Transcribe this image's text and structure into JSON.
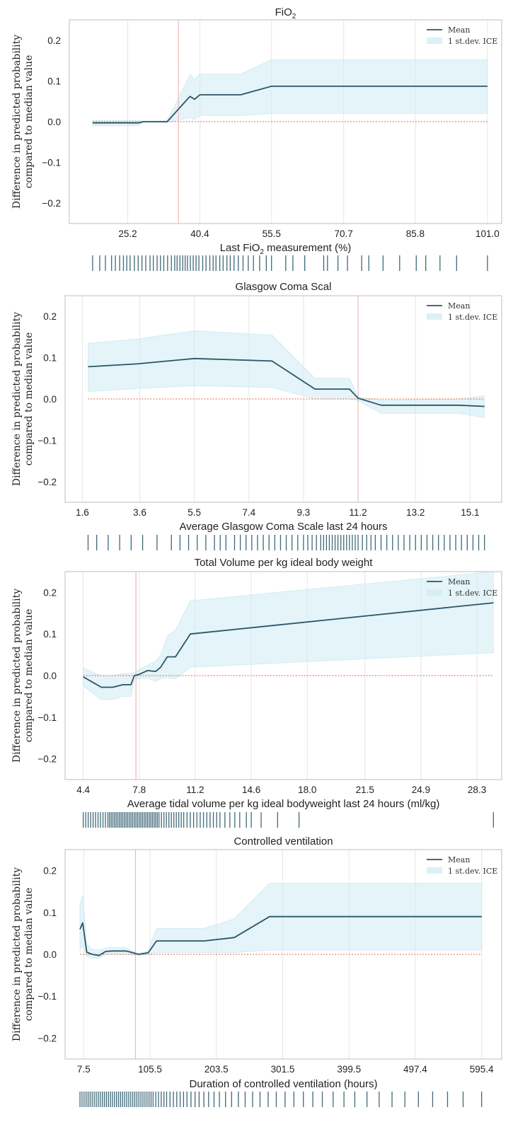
{
  "colors": {
    "mean_line": "#2b5566",
    "band_fill": "#cdebf3",
    "zero_line": "#e8633f",
    "ref_line": "#f2b8b8",
    "grid": "#e6e6e6",
    "frame": "#bdbdbd",
    "rug": "#1f4f5f"
  },
  "shared": {
    "ylabel_line1": "Difference in predicted probability",
    "ylabel_line2": "compared to median value",
    "legend_mean": "Mean",
    "legend_band": "1 st.dev. ICE"
  },
  "chart_data": [
    {
      "type": "line",
      "title": "FiO",
      "title_sub": "2",
      "xlabel_pre": "Last FiO",
      "xlabel_sub": "2",
      "xlabel_post": " measurement (%)",
      "xlim": [
        12.9,
        104.0
      ],
      "ylim": [
        -0.25,
        0.25
      ],
      "xticks": [
        25.2,
        40.4,
        55.5,
        70.7,
        85.8,
        101.0
      ],
      "xtick_labels": [
        "25.2",
        "40.4",
        "55.5",
        "70.7",
        "85.8",
        "101.0"
      ],
      "yticks": [
        0.2,
        0.1,
        0.0,
        -0.1,
        -0.2
      ],
      "ytick_labels": [
        "0.2",
        "0.1",
        "0.0",
        "−0.1",
        "−0.2"
      ],
      "reference_x": 35.9,
      "mean": {
        "x": [
          17.8,
          27.5,
          28.5,
          33.5,
          38.3,
          39.3,
          40.4,
          49.0,
          55.5,
          101.0
        ],
        "y": [
          -0.003,
          -0.003,
          0.0,
          0.0,
          0.062,
          0.055,
          0.066,
          0.066,
          0.087,
          0.087
        ]
      },
      "band": {
        "x": [
          17.8,
          27.5,
          28.5,
          33.5,
          38.3,
          39.3,
          40.4,
          49.0,
          55.5,
          101.0
        ],
        "upper": [
          0.003,
          0.003,
          0.001,
          0.002,
          0.115,
          0.105,
          0.117,
          0.117,
          0.152,
          0.152
        ],
        "lower": [
          -0.01,
          -0.01,
          -0.001,
          -0.002,
          0.01,
          0.005,
          0.015,
          0.015,
          0.02,
          0.02
        ]
      },
      "rug": [
        17.8,
        19.3,
        20.5,
        21.8,
        22.6,
        23.5,
        24.3,
        25.0,
        25.7,
        26.6,
        27.4,
        28.2,
        29.0,
        29.9,
        30.6,
        31.4,
        32.1,
        32.8,
        33.6,
        34.4,
        35.1,
        35.6,
        36.2,
        36.8,
        37.3,
        37.8,
        38.4,
        39.0,
        39.6,
        40.2,
        41.0,
        41.7,
        42.5,
        43.2,
        43.8,
        44.6,
        45.3,
        46.1,
        46.8,
        47.6,
        48.5,
        49.5,
        50.6,
        51.7,
        53.0,
        54.4,
        55.5,
        58.5,
        60.0,
        62.5,
        66.5,
        67.3,
        69.5,
        71.5,
        74.5,
        76.0,
        79.0,
        82.5,
        86.0,
        88.0,
        91.0,
        94.5,
        101.0
      ]
    },
    {
      "type": "line",
      "title": "Glasgow Coma Scal",
      "xlabel": "Average Glasgow Coma Scale last 24 hours",
      "xlim": [
        1.0,
        16.2
      ],
      "ylim": [
        -0.25,
        0.25
      ],
      "xticks": [
        1.6,
        3.6,
        5.5,
        7.4,
        9.3,
        11.2,
        13.2,
        15.1
      ],
      "xtick_labels": [
        "1.6",
        "3.6",
        "5.5",
        "7.4",
        "9.3",
        "11.2",
        "13.2",
        "15.1"
      ],
      "yticks": [
        0.2,
        0.1,
        0.0,
        -0.1,
        -0.2
      ],
      "ytick_labels": [
        "0.2",
        "0.1",
        "0.0",
        "−0.1",
        "−0.2"
      ],
      "reference_x": 11.2,
      "mean": {
        "x": [
          1.8,
          3.5,
          5.5,
          8.2,
          9.7,
          10.9,
          11.2,
          12.0,
          14.7,
          15.6
        ],
        "y": [
          0.078,
          0.085,
          0.098,
          0.092,
          0.024,
          0.024,
          0.002,
          -0.015,
          -0.015,
          -0.018
        ]
      },
      "band": {
        "x": [
          1.8,
          3.5,
          5.5,
          8.2,
          9.7,
          10.9,
          11.2,
          12.0,
          14.7,
          15.6
        ],
        "upper": [
          0.135,
          0.145,
          0.165,
          0.155,
          0.05,
          0.05,
          0.005,
          -0.003,
          0.0,
          0.008
        ],
        "lower": [
          0.018,
          0.025,
          0.032,
          0.028,
          0.0,
          0.0,
          -0.004,
          -0.035,
          -0.035,
          -0.045
        ]
      },
      "rug": [
        1.8,
        2.1,
        2.5,
        2.9,
        3.3,
        3.7,
        4.2,
        4.7,
        5.0,
        5.3,
        5.6,
        5.9,
        6.2,
        6.4,
        6.6,
        6.9,
        7.1,
        7.3,
        7.5,
        7.7,
        7.9,
        8.1,
        8.3,
        8.5,
        8.7,
        8.9,
        9.1,
        9.3,
        9.45,
        9.6,
        9.75,
        9.9,
        10.0,
        10.1,
        10.2,
        10.3,
        10.4,
        10.5,
        10.6,
        10.7,
        10.8,
        10.9,
        11.0,
        11.1,
        11.2,
        11.35,
        11.5,
        11.65,
        11.8,
        12.0,
        12.2,
        12.4,
        12.6,
        12.8,
        13.0,
        13.2,
        13.4,
        13.6,
        13.8,
        14.0,
        14.2,
        14.4,
        14.6,
        14.8,
        15.0,
        15.2,
        15.4,
        15.6
      ]
    },
    {
      "type": "line",
      "title": "Total Volume per kg ideal body weight",
      "xlabel": "Average tidal volume per kg ideal bodyweight last 24 hours (ml/kg)",
      "xlim": [
        3.3,
        29.8
      ],
      "ylim": [
        -0.25,
        0.25
      ],
      "xticks": [
        4.4,
        7.8,
        11.2,
        14.6,
        18.0,
        21.5,
        24.9,
        28.3
      ],
      "xtick_labels": [
        "4.4",
        "7.8",
        "11.2",
        "14.6",
        "18.0",
        "21.5",
        "24.9",
        "28.3"
      ],
      "yticks": [
        0.2,
        0.1,
        0.0,
        -0.1,
        -0.2
      ],
      "ytick_labels": [
        "0.2",
        "0.1",
        "0.0",
        "−0.1",
        "−0.2"
      ],
      "reference_x": 7.6,
      "mean": {
        "x": [
          4.4,
          5.5,
          6.2,
          6.8,
          7.3,
          7.5,
          7.8,
          8.3,
          8.8,
          9.1,
          9.5,
          10.0,
          10.9,
          29.3
        ],
        "y": [
          -0.003,
          -0.028,
          -0.028,
          -0.022,
          -0.022,
          0.0,
          0.003,
          0.012,
          0.01,
          0.02,
          0.045,
          0.045,
          0.1,
          0.175
        ]
      },
      "band": {
        "x": [
          4.4,
          5.5,
          6.2,
          6.8,
          7.3,
          7.5,
          7.8,
          8.3,
          8.8,
          9.1,
          9.5,
          10.0,
          10.9,
          29.3
        ],
        "upper": [
          0.018,
          0.0,
          0.0,
          0.005,
          0.005,
          0.008,
          0.015,
          0.025,
          0.035,
          0.05,
          0.095,
          0.11,
          0.18,
          0.25
        ],
        "lower": [
          -0.025,
          -0.058,
          -0.058,
          -0.05,
          -0.05,
          -0.008,
          -0.008,
          -0.005,
          -0.015,
          -0.008,
          -0.005,
          -0.008,
          0.02,
          0.055
        ]
      },
      "rug": [
        4.4,
        4.55,
        4.7,
        4.85,
        5.0,
        5.15,
        5.3,
        5.45,
        5.6,
        5.75,
        5.9,
        6.0,
        6.1,
        6.2,
        6.3,
        6.4,
        6.5,
        6.6,
        6.7,
        6.8,
        6.9,
        7.0,
        7.1,
        7.2,
        7.3,
        7.4,
        7.5,
        7.6,
        7.7,
        7.8,
        7.9,
        8.0,
        8.1,
        8.2,
        8.3,
        8.4,
        8.5,
        8.6,
        8.7,
        8.8,
        8.9,
        9.0,
        9.15,
        9.3,
        9.45,
        9.6,
        9.75,
        9.9,
        10.05,
        10.2,
        10.35,
        10.5,
        10.7,
        10.9,
        11.1,
        11.3,
        11.5,
        11.7,
        11.9,
        12.1,
        12.3,
        12.5,
        12.7,
        13.0,
        13.3,
        13.6,
        13.9,
        14.3,
        14.6,
        15.2,
        16.2,
        17.5,
        29.3
      ]
    },
    {
      "type": "line",
      "title": "Controlled ventilation",
      "xlabel": "Duration of controlled ventilation (hours)",
      "xlim": [
        -20.0,
        625.0
      ],
      "ylim": [
        -0.25,
        0.25
      ],
      "xticks": [
        7.5,
        105.5,
        203.5,
        301.5,
        399.5,
        497.4,
        595.4
      ],
      "xtick_labels": [
        "7.5",
        "105.5",
        "203.5",
        "301.5",
        "399.5",
        "497.4",
        "595.4"
      ],
      "yticks": [
        0.2,
        0.1,
        0.0,
        -0.1,
        -0.2
      ],
      "ytick_labels": [
        "0.2",
        "0.1",
        "0.0",
        "−0.1",
        "−0.2"
      ],
      "reference_x": 84.0,
      "mean": {
        "x": [
          2.0,
          6.0,
          12.0,
          20.0,
          30.0,
          40.0,
          50.0,
          70.0,
          84.0,
          88.0,
          97.0,
          103.0,
          115.0,
          185.0,
          230.0,
          282.0,
          595.4
        ],
        "y": [
          0.06,
          0.075,
          0.005,
          0.0,
          -0.003,
          0.007,
          0.008,
          0.008,
          0.002,
          0.0,
          0.002,
          0.004,
          0.032,
          0.032,
          0.04,
          0.09,
          0.09
        ]
      },
      "band": {
        "x": [
          2.0,
          6.0,
          12.0,
          20.0,
          30.0,
          40.0,
          50.0,
          70.0,
          84.0,
          88.0,
          97.0,
          103.0,
          115.0,
          185.0,
          230.0,
          282.0,
          595.4
        ],
        "upper": [
          0.12,
          0.14,
          0.025,
          0.012,
          0.01,
          0.015,
          0.016,
          0.016,
          0.005,
          0.002,
          0.005,
          0.01,
          0.062,
          0.062,
          0.085,
          0.17,
          0.17
        ],
        "lower": [
          0.01,
          0.02,
          -0.005,
          -0.01,
          -0.01,
          0.0,
          0.0,
          0.0,
          -0.002,
          -0.002,
          -0.002,
          0.0,
          0.004,
          0.004,
          0.004,
          0.01,
          0.01
        ]
      },
      "rug": [
        2.0,
        5.0,
        8.0,
        11.0,
        14.0,
        17.0,
        20.0,
        23.0,
        26.0,
        29.0,
        32.0,
        35.0,
        38.0,
        41.0,
        44.0,
        47.0,
        50.0,
        53.0,
        56.0,
        59.0,
        62.0,
        65.0,
        68.0,
        71.0,
        74.0,
        77.0,
        80.0,
        83.0,
        86.0,
        89.0,
        92.0,
        95.0,
        98.0,
        101.0,
        104.0,
        107.0,
        110.0,
        114.0,
        118.0,
        122.0,
        126.0,
        130.0,
        135.0,
        140.0,
        145.0,
        150.0,
        155.0,
        160.0,
        166.0,
        172.0,
        178.0,
        185.0,
        192.0,
        200.0,
        208.0,
        217.0,
        226.0,
        236.0,
        246.0,
        257.0,
        268.0,
        280.0,
        292.0,
        305.0,
        318.0,
        332.0,
        346.0,
        360.0,
        376.0,
        392.0,
        408.0,
        426.0,
        444.0,
        463.0,
        482.0,
        502.0,
        523.0,
        545.0,
        568.0,
        595.4
      ]
    }
  ]
}
